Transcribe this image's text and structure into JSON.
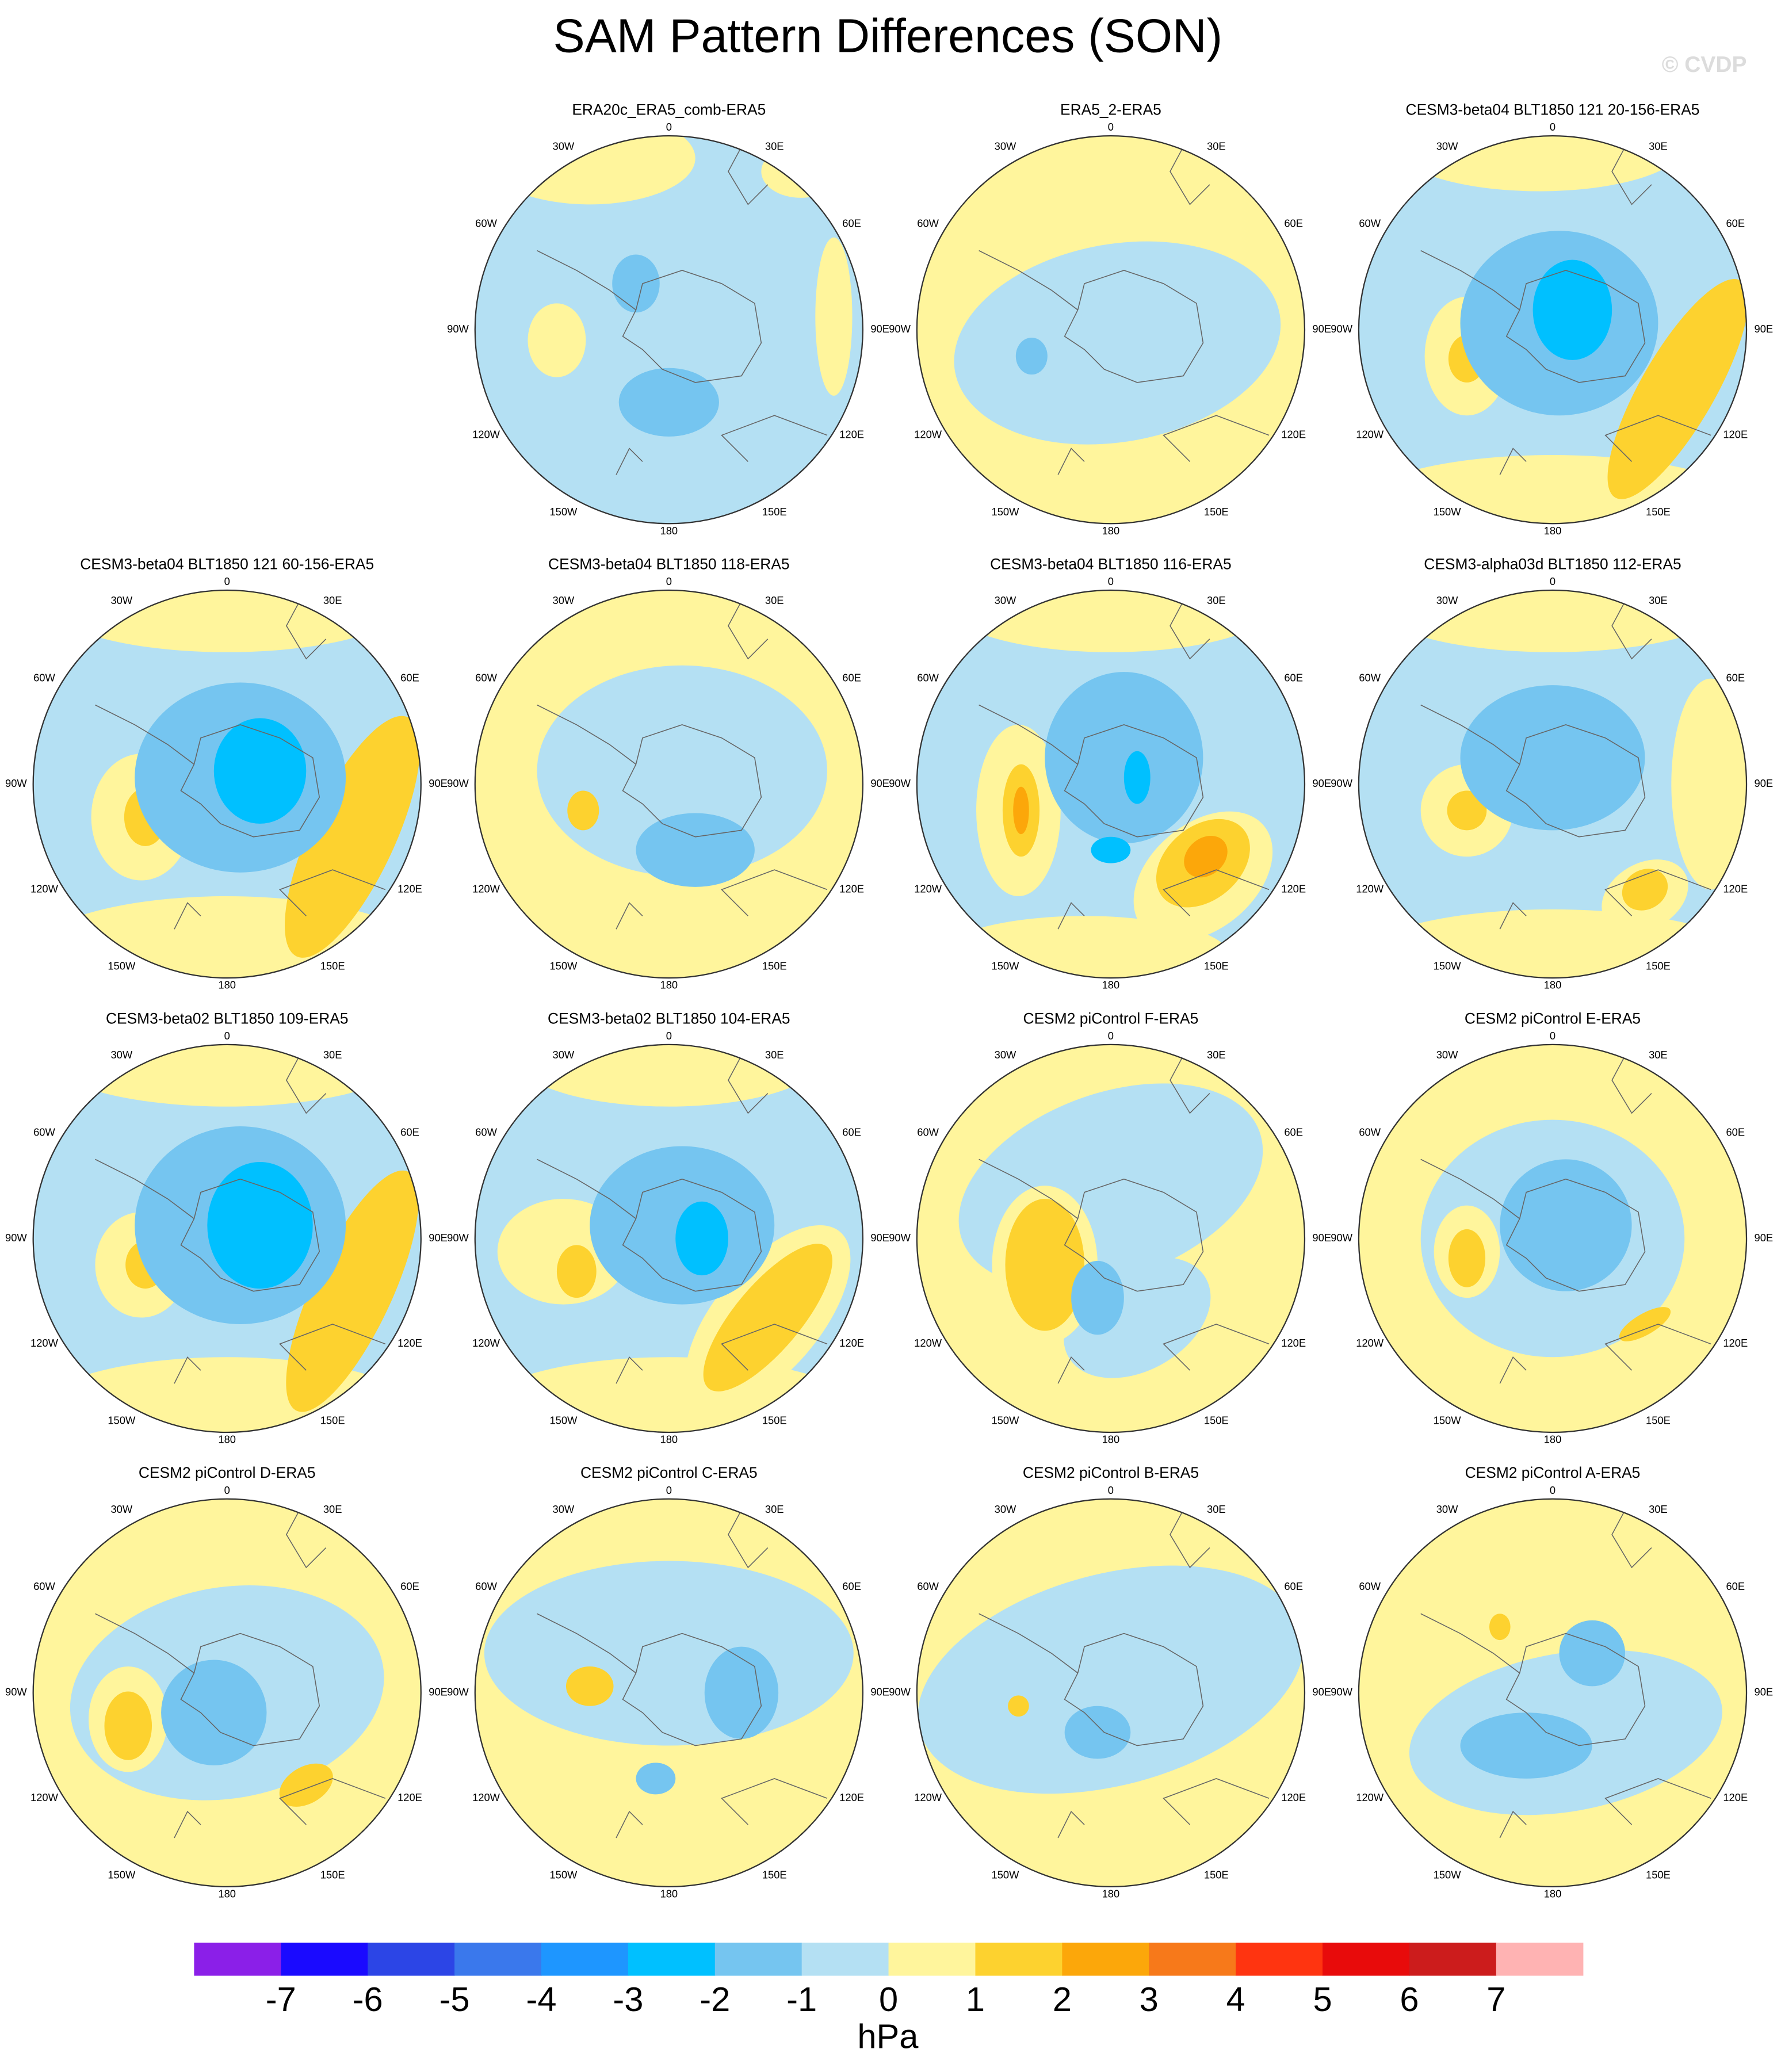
{
  "title": "SAM Pattern Differences (SON)",
  "watermark": "© CVDP",
  "panels": [
    {
      "title": "ERA20c_ERA5_comb-ERA5"
    },
    {
      "title": "ERA5_2-ERA5"
    },
    {
      "title": "CESM3-beta04 BLT1850 121 20-156-ERA5"
    },
    {
      "title": "CESM3-beta04 BLT1850 121 60-156-ERA5"
    },
    {
      "title": "CESM3-beta04 BLT1850 118-ERA5"
    },
    {
      "title": "CESM3-beta04 BLT1850 116-ERA5"
    },
    {
      "title": "CESM3-alpha03d BLT1850 112-ERA5"
    },
    {
      "title": "CESM3-beta02 BLT1850 109-ERA5"
    },
    {
      "title": "CESM3-beta02 BLT1850 104-ERA5"
    },
    {
      "title": "CESM2 piControl F-ERA5"
    },
    {
      "title": "CESM2 piControl E-ERA5"
    },
    {
      "title": "CESM2 piControl D-ERA5"
    },
    {
      "title": "CESM2 piControl C-ERA5"
    },
    {
      "title": "CESM2 piControl B-ERA5"
    },
    {
      "title": "CESM2 piControl A-ERA5"
    }
  ],
  "longitude_labels": [
    "0",
    "30E",
    "60E",
    "90E",
    "120E",
    "150E",
    "180",
    "150W",
    "120W",
    "90W",
    "60W",
    "30W"
  ],
  "colorbar": {
    "colors": [
      "#8b1fe8",
      "#1a0aff",
      "#2c45e6",
      "#3a78ec",
      "#1e96ff",
      "#00c0ff",
      "#75c5f0",
      "#b4e0f3",
      "#fff59c",
      "#fdd22f",
      "#fca70a",
      "#f7791a",
      "#ff3410",
      "#e80b0b",
      "#cc1c1c",
      "#ffb3b3"
    ],
    "ticks": [
      -7,
      -6,
      -5,
      -4,
      -3,
      -2,
      -1,
      0,
      1,
      2,
      3,
      4,
      5,
      6,
      7
    ],
    "label": "hPa"
  }
}
